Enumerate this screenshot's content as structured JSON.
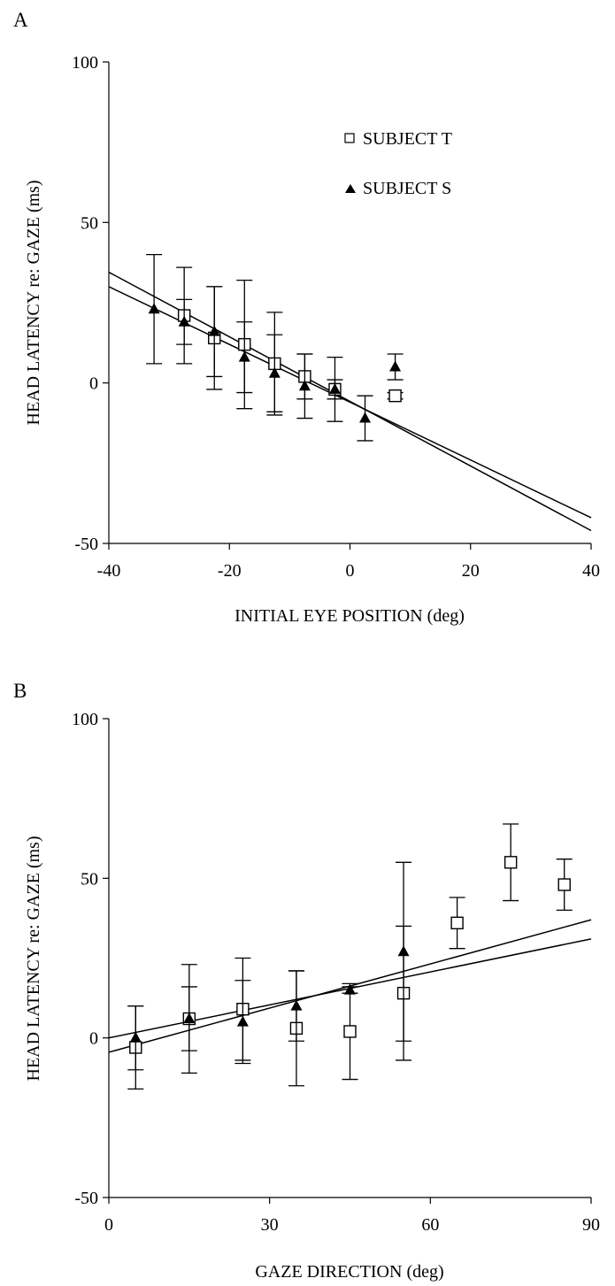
{
  "chart_data": [
    {
      "panel_label": "A",
      "type": "scatter",
      "xlabel": "INITIAL EYE POSITION (deg)",
      "ylabel": "HEAD LATENCY re: GAZE (ms)",
      "xlim": [
        -40,
        40
      ],
      "ylim": [
        -50,
        100
      ],
      "xticks": [
        -40,
        -20,
        0,
        20,
        40
      ],
      "yticks": [
        -50,
        0,
        50,
        100
      ],
      "xtick_labels": [
        "-40",
        "-20",
        "0",
        "20",
        "40"
      ],
      "ytick_labels": [
        "-50",
        "0",
        "50",
        "100"
      ],
      "legend_position": "top-right",
      "series": [
        {
          "name": "SUBJECT T",
          "marker": "open-square",
          "points": [
            {
              "x": -27.5,
              "y": 21,
              "err": 15
            },
            {
              "x": -22.5,
              "y": 14,
              "err": 16
            },
            {
              "x": -17.5,
              "y": 12,
              "err": 20
            },
            {
              "x": -12.5,
              "y": 6,
              "err": 16
            },
            {
              "x": -7.5,
              "y": 2,
              "err": 7
            },
            {
              "x": -2.5,
              "y": -2,
              "err": 3
            },
            {
              "x": 7.5,
              "y": -4,
              "err": 1
            }
          ]
        },
        {
          "name": "SUBJECT S",
          "marker": "filled-triangle",
          "points": [
            {
              "x": -32.5,
              "y": 23,
              "err": 17
            },
            {
              "x": -27.5,
              "y": 19,
              "err": 7
            },
            {
              "x": -22.5,
              "y": 16,
              "err": 14
            },
            {
              "x": -17.5,
              "y": 8,
              "err": 11
            },
            {
              "x": -12.5,
              "y": 3,
              "err": 12
            },
            {
              "x": -7.5,
              "y": -1,
              "err": 10
            },
            {
              "x": -2.5,
              "y": -2,
              "err": 10
            },
            {
              "x": 2.5,
              "y": -11,
              "err": 7
            },
            {
              "x": 7.5,
              "y": 5,
              "err": 4
            }
          ]
        }
      ],
      "fit_lines": [
        {
          "x": [
            -40,
            40
          ],
          "y": [
            34.5,
            -46
          ]
        },
        {
          "x": [
            -40,
            40
          ],
          "y": [
            30,
            -42
          ]
        }
      ]
    },
    {
      "panel_label": "B",
      "type": "scatter",
      "xlabel": "GAZE DIRECTION (deg)",
      "ylabel": "HEAD LATENCY re: GAZE (ms)",
      "xlim": [
        0,
        90
      ],
      "ylim": [
        -50,
        100
      ],
      "xticks": [
        0,
        30,
        60,
        90
      ],
      "yticks": [
        -50,
        0,
        50,
        100
      ],
      "xtick_labels": [
        "0",
        "30",
        "60",
        "90"
      ],
      "ytick_labels": [
        "-50",
        "0",
        "50",
        "100"
      ],
      "series": [
        {
          "name": "SUBJECT T",
          "marker": "open-square",
          "points": [
            {
              "x": 5,
              "y": -3,
              "err": 13
            },
            {
              "x": 15,
              "y": 6,
              "err": 17
            },
            {
              "x": 25,
              "y": 9,
              "err": 16
            },
            {
              "x": 35,
              "y": 3,
              "err": 18
            },
            {
              "x": 45,
              "y": 2,
              "err": 15
            },
            {
              "x": 55,
              "y": 14,
              "err": 21
            },
            {
              "x": 65,
              "y": 36,
              "err": 8
            },
            {
              "x": 75,
              "y": 55,
              "err": 12
            },
            {
              "x": 85,
              "y": 48,
              "err": 8
            }
          ]
        },
        {
          "name": "SUBJECT S",
          "marker": "filled-triangle",
          "points": [
            {
              "x": 5,
              "y": 0,
              "err": 10
            },
            {
              "x": 15,
              "y": 6,
              "err": 10
            },
            {
              "x": 25,
              "y": 5,
              "err": 13
            },
            {
              "x": 35,
              "y": 10,
              "err": 11
            },
            {
              "x": 45,
              "y": 15,
              "err": 1
            },
            {
              "x": 55,
              "y": 27,
              "err": 28
            }
          ]
        }
      ],
      "fit_lines": [
        {
          "x": [
            0,
            90
          ],
          "y": [
            -4.5,
            37
          ]
        },
        {
          "x": [
            0,
            90
          ],
          "y": [
            0,
            31
          ]
        }
      ]
    }
  ]
}
